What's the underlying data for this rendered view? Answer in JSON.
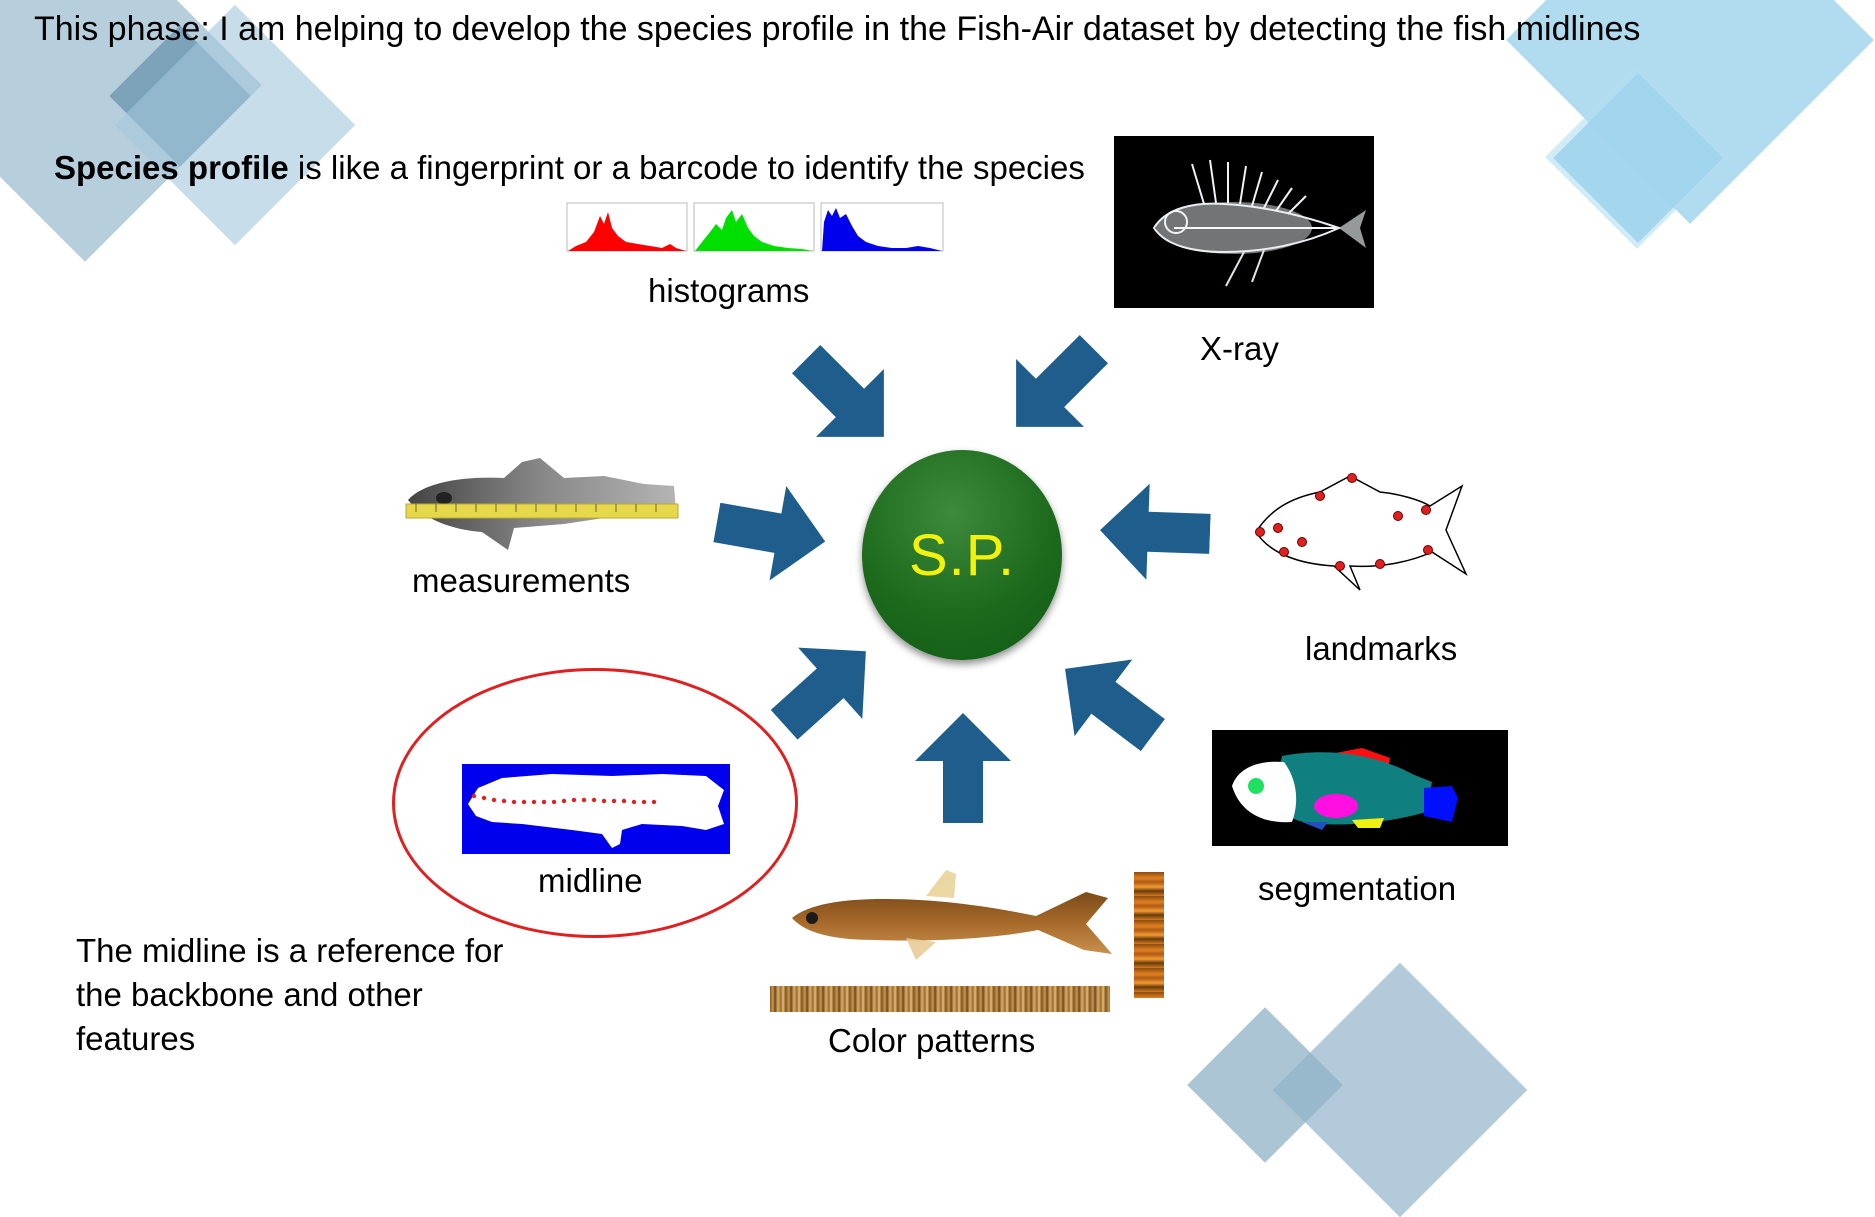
{
  "title": "This phase: I am helping to develop the species profile in the Fish-Air dataset by detecting the fish midlines",
  "species_profile": {
    "bold": "Species profile",
    "rest": " is like a fingerprint or a barcode to identify the species"
  },
  "center": {
    "label": "S.P."
  },
  "features": {
    "histograms": "histograms",
    "xray": "X-ray",
    "measurements": "measurements",
    "landmarks": "landmarks",
    "midline": "midline",
    "segmentation": "segmentation",
    "color_patterns": "Color patterns"
  },
  "note": "The midline is a reference for the backbone and other features",
  "colors": {
    "arrow": "#1f5e8c",
    "circle": "#1d6a1d",
    "circle_text": "#f2f20a",
    "highlight_ring": "#e02020",
    "decor_light": "#a8d8ee",
    "decor_dark": "#7fa6bd"
  }
}
